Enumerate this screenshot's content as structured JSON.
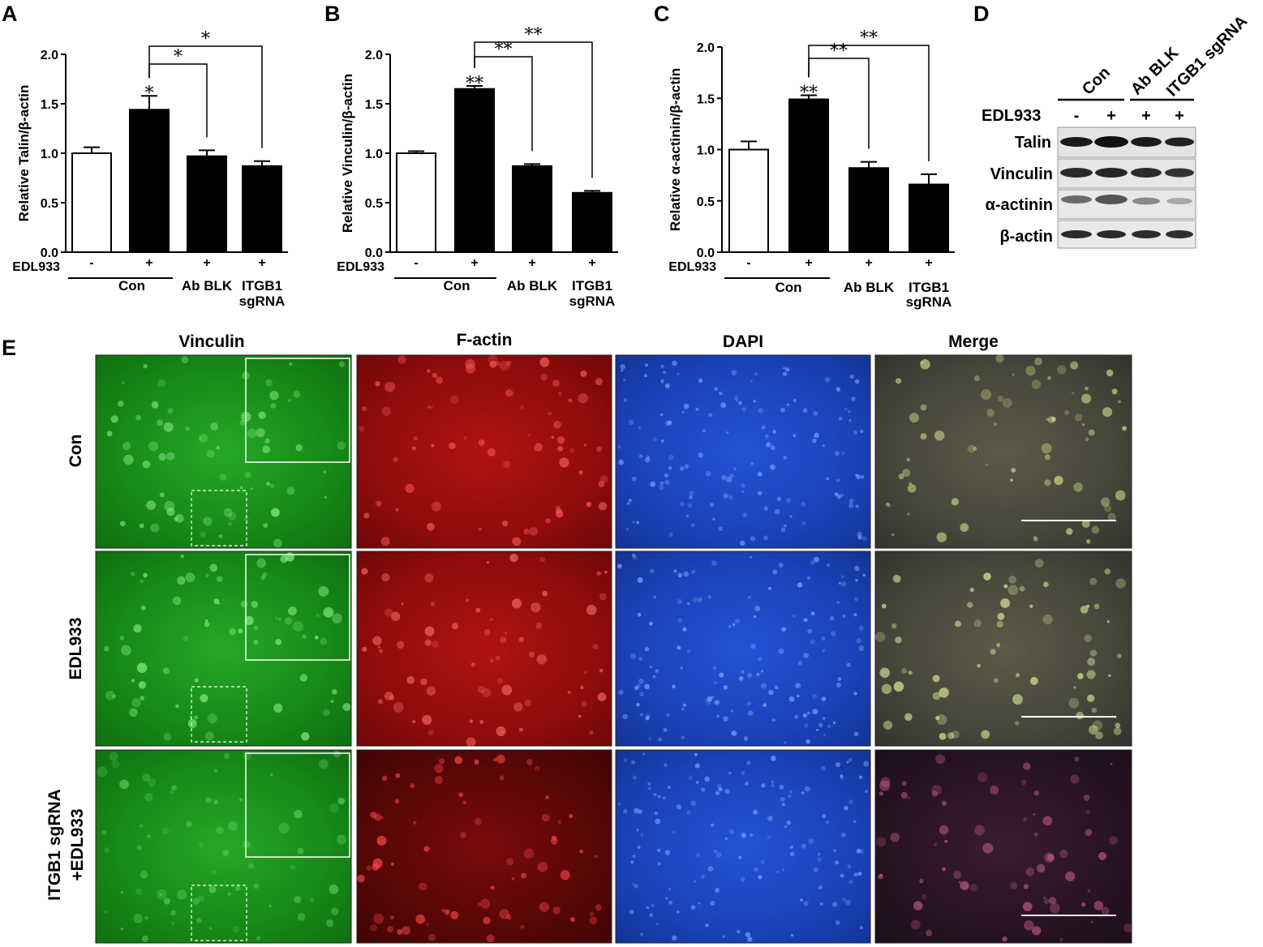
{
  "panel_labels": [
    "A",
    "B",
    "C",
    "D",
    "E"
  ],
  "treatment_label": "EDL933",
  "chart_data": [
    {
      "type": "bar",
      "panel": "A",
      "ylabel": "Relative Talin/β-actin",
      "ylim": [
        0,
        2.0
      ],
      "yticks": [
        "0.0",
        "0.5",
        "1.0",
        "1.5",
        "2.0"
      ],
      "categories": [
        "Con -",
        "Con +",
        "Ab BLK +",
        "ITGB1 sgRNA +"
      ],
      "edl933": [
        "-",
        "+",
        "+",
        "+"
      ],
      "groups": [
        "Con",
        "Ab BLK",
        "ITGB1",
        "sgRNA"
      ],
      "values": [
        1.0,
        1.44,
        0.97,
        0.87
      ],
      "errors": [
        0.06,
        0.14,
        0.06,
        0.05
      ],
      "fills": [
        "#ffffff",
        "#000000",
        "#000000",
        "#000000"
      ],
      "bar_star": "*",
      "comparisons": [
        {
          "stars": "*"
        },
        {
          "stars": "*"
        }
      ]
    },
    {
      "type": "bar",
      "panel": "B",
      "ylabel": "Relative Vinculin/β-actin",
      "ylim": [
        0,
        2.0
      ],
      "yticks": [
        "0.0",
        "0.5",
        "1.0",
        "1.5",
        "2.0"
      ],
      "categories": [
        "Con -",
        "Con +",
        "Ab BLK +",
        "ITGB1 sgRNA +"
      ],
      "edl933": [
        "-",
        "+",
        "+",
        "+"
      ],
      "groups": [
        "Con",
        "Ab BLK",
        "ITGB1",
        "sgRNA"
      ],
      "values": [
        1.0,
        1.65,
        0.87,
        0.6
      ],
      "errors": [
        0.02,
        0.03,
        0.02,
        0.02
      ],
      "fills": [
        "#ffffff",
        "#000000",
        "#000000",
        "#000000"
      ],
      "bar_star": "**",
      "comparisons": [
        {
          "stars": "**"
        },
        {
          "stars": "**"
        }
      ]
    },
    {
      "type": "bar",
      "panel": "C",
      "ylabel": "Relative α-actinin/β-actin",
      "ylim": [
        0,
        2.0
      ],
      "yticks": [
        "0.0",
        "0.5",
        "1.0",
        "1.5",
        "2.0"
      ],
      "categories": [
        "Con -",
        "Con +",
        "Ab BLK +",
        "ITGB1 sgRNA +"
      ],
      "edl933": [
        "-",
        "+",
        "+",
        "+"
      ],
      "groups": [
        "Con",
        "Ab BLK",
        "ITGB1",
        "sgRNA"
      ],
      "values": [
        1.0,
        1.49,
        0.82,
        0.66
      ],
      "errors": [
        0.08,
        0.04,
        0.06,
        0.1
      ],
      "fills": [
        "#ffffff",
        "#000000",
        "#000000",
        "#000000"
      ],
      "bar_star": "**",
      "comparisons": [
        {
          "stars": "**"
        },
        {
          "stars": "**"
        }
      ]
    }
  ],
  "western_blot": {
    "column_headers": [
      "Con",
      "Ab BLK",
      "ITGB1 sgRNA"
    ],
    "edl933_label": "EDL933",
    "edl933_signs": [
      "-",
      "+",
      "+",
      "+"
    ],
    "proteins": [
      "Talin",
      "Vinculin",
      "α-actinin",
      "β-actin"
    ]
  },
  "microscopy": {
    "columns": [
      "Vinculin",
      "F-actin",
      "DAPI",
      "Merge"
    ],
    "rows": [
      {
        "label": "Con"
      },
      {
        "label": "EDL933"
      },
      {
        "label_line1": "ITGB1 sgRNA",
        "label_line2": "+EDL933"
      }
    ],
    "colors": {
      "vinculin": "#1fa31f",
      "factin": "#b01010",
      "dapi": "#1a46c8",
      "merge": "#4a4838"
    }
  }
}
